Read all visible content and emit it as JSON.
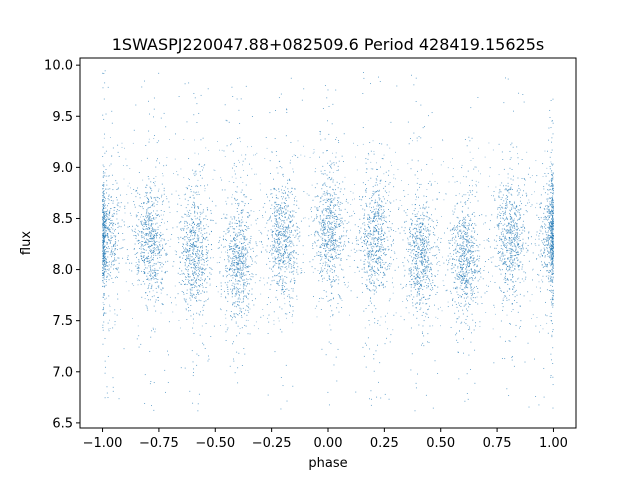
{
  "chart_data": {
    "type": "scatter",
    "title": "1SWASPJ220047.88+082509.6 Period 428419.15625s",
    "xlabel": "phase",
    "ylabel": "flux",
    "xlim": [
      -1.1,
      1.1
    ],
    "ylim": [
      6.45,
      10.07
    ],
    "xticks": [
      -1.0,
      -0.75,
      -0.5,
      -0.25,
      0.0,
      0.25,
      0.5,
      0.75,
      1.0
    ],
    "xtick_labels": [
      "−1.00",
      "−0.75",
      "−0.50",
      "−0.25",
      "0.00",
      "0.25",
      "0.50",
      "0.75",
      "1.00"
    ],
    "yticks": [
      6.5,
      7.0,
      7.5,
      8.0,
      8.5,
      9.0,
      9.5,
      10.0
    ],
    "ytick_labels": [
      "6.5",
      "7.0",
      "7.5",
      "8.0",
      "8.5",
      "9.0",
      "9.5",
      "10.0"
    ],
    "grid": false,
    "point_color": "#1f77b4",
    "series": [
      {
        "band_centers": [
          -0.99,
          -0.79,
          -0.59,
          -0.4,
          -0.2,
          0.01,
          0.21,
          0.41,
          0.61,
          0.81,
          1.0
        ],
        "band_levels": [
          8.32,
          8.3,
          8.18,
          8.12,
          8.3,
          8.38,
          8.3,
          8.14,
          8.12,
          8.3,
          8.34
        ]
      }
    ]
  }
}
